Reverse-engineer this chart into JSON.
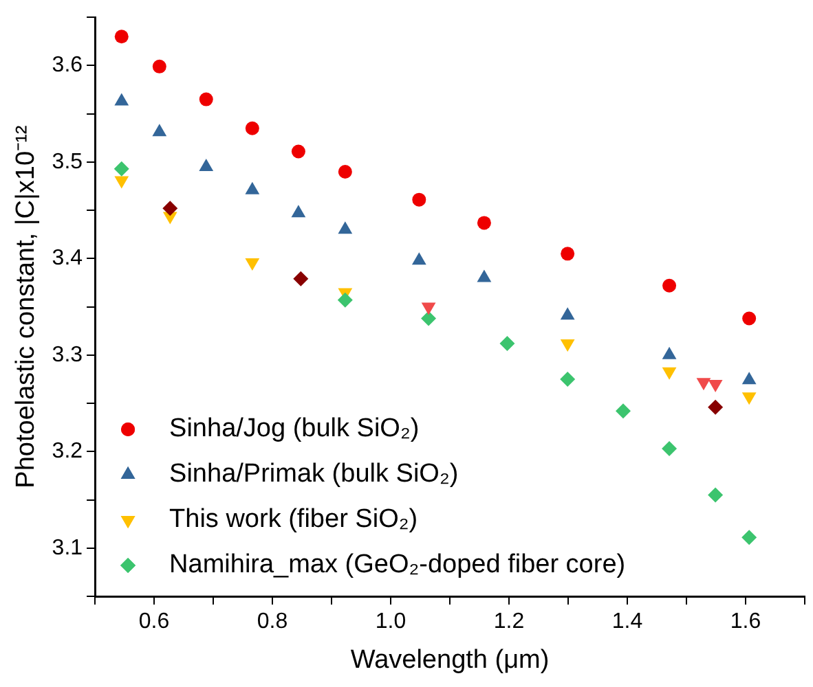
{
  "chart_data": {
    "type": "scatter",
    "xlabel": "Wavelength (μm)",
    "ylabel": "Photoelastic constant, |C|x10⁻¹²",
    "xlim": [
      0.5,
      1.7
    ],
    "ylim": [
      3.05,
      3.65
    ],
    "xticks": [
      {
        "value": 0.5,
        "label": null
      },
      0.6,
      {
        "value": 0.7,
        "label": null
      },
      0.8,
      {
        "value": 0.9,
        "label": null
      },
      {
        "value": 1.0,
        "label": "1.0"
      },
      {
        "value": 1.1,
        "label": null
      },
      1.2,
      {
        "value": 1.3,
        "label": null
      },
      1.4,
      {
        "value": 1.5,
        "label": null
      },
      1.6,
      {
        "value": 1.7,
        "label": null
      }
    ],
    "yticks": [
      {
        "value": 3.05,
        "label": null
      },
      3.1,
      {
        "value": 3.15,
        "label": null
      },
      3.2,
      {
        "value": 3.25,
        "label": null
      },
      3.3,
      {
        "value": 3.35,
        "label": null
      },
      3.4,
      {
        "value": 3.45,
        "label": null
      },
      3.5,
      {
        "value": 3.55,
        "label": null
      },
      3.6,
      {
        "value": 3.65,
        "label": null
      }
    ],
    "grid": false,
    "legend": "bottom left",
    "series": [
      {
        "name": "Sinha/Jog (bulk SiO₂)",
        "color": "#ee0000",
        "marker": "circle",
        "x": [
          0.545,
          0.609,
          0.688,
          0.766,
          0.844,
          0.923,
          1.048,
          1.158,
          1.299,
          1.471,
          1.606
        ],
        "values": [
          3.63,
          3.599,
          3.565,
          3.535,
          3.511,
          3.49,
          3.461,
          3.437,
          3.405,
          3.372,
          3.338
        ]
      },
      {
        "name": "Sinha/Primak (bulk SiO₂)",
        "color": "#336699",
        "marker": "triangle",
        "x": [
          0.545,
          0.609,
          0.688,
          0.766,
          0.844,
          0.923,
          1.048,
          1.158,
          1.299,
          1.471,
          1.606
        ],
        "values": [
          3.563,
          3.531,
          3.495,
          3.471,
          3.447,
          3.43,
          3.398,
          3.38,
          3.341,
          3.3,
          3.274
        ]
      },
      {
        "name": "This work (fiber SiO₂)",
        "color": "#ffc000",
        "marker": "triangle-down",
        "x": [
          0.545,
          0.627,
          0.766,
          0.923,
          1.299,
          1.471,
          1.606
        ],
        "values": [
          3.481,
          3.444,
          3.396,
          3.365,
          3.312,
          3.283,
          3.257
        ]
      },
      {
        "name": "Namihira_max (GeO₂-doped fiber core)",
        "color": "#3cc46e",
        "marker": "diamond",
        "x": [
          0.545,
          0.923,
          1.064,
          1.197,
          1.299,
          1.393,
          1.471,
          1.549,
          1.606
        ],
        "values": [
          3.493,
          3.357,
          3.338,
          3.312,
          3.275,
          3.242,
          3.203,
          3.155,
          3.111
        ]
      },
      {
        "color": "#880000",
        "marker": "diamond",
        "x": [
          0.627,
          0.848,
          1.549
        ],
        "values": [
          3.452,
          3.379,
          3.246
        ]
      },
      {
        "color": "#f04a4a",
        "marker": "triangle-down",
        "x": [
          1.064,
          1.529,
          1.549
        ],
        "values": [
          3.35,
          3.272,
          3.27
        ]
      }
    ]
  }
}
